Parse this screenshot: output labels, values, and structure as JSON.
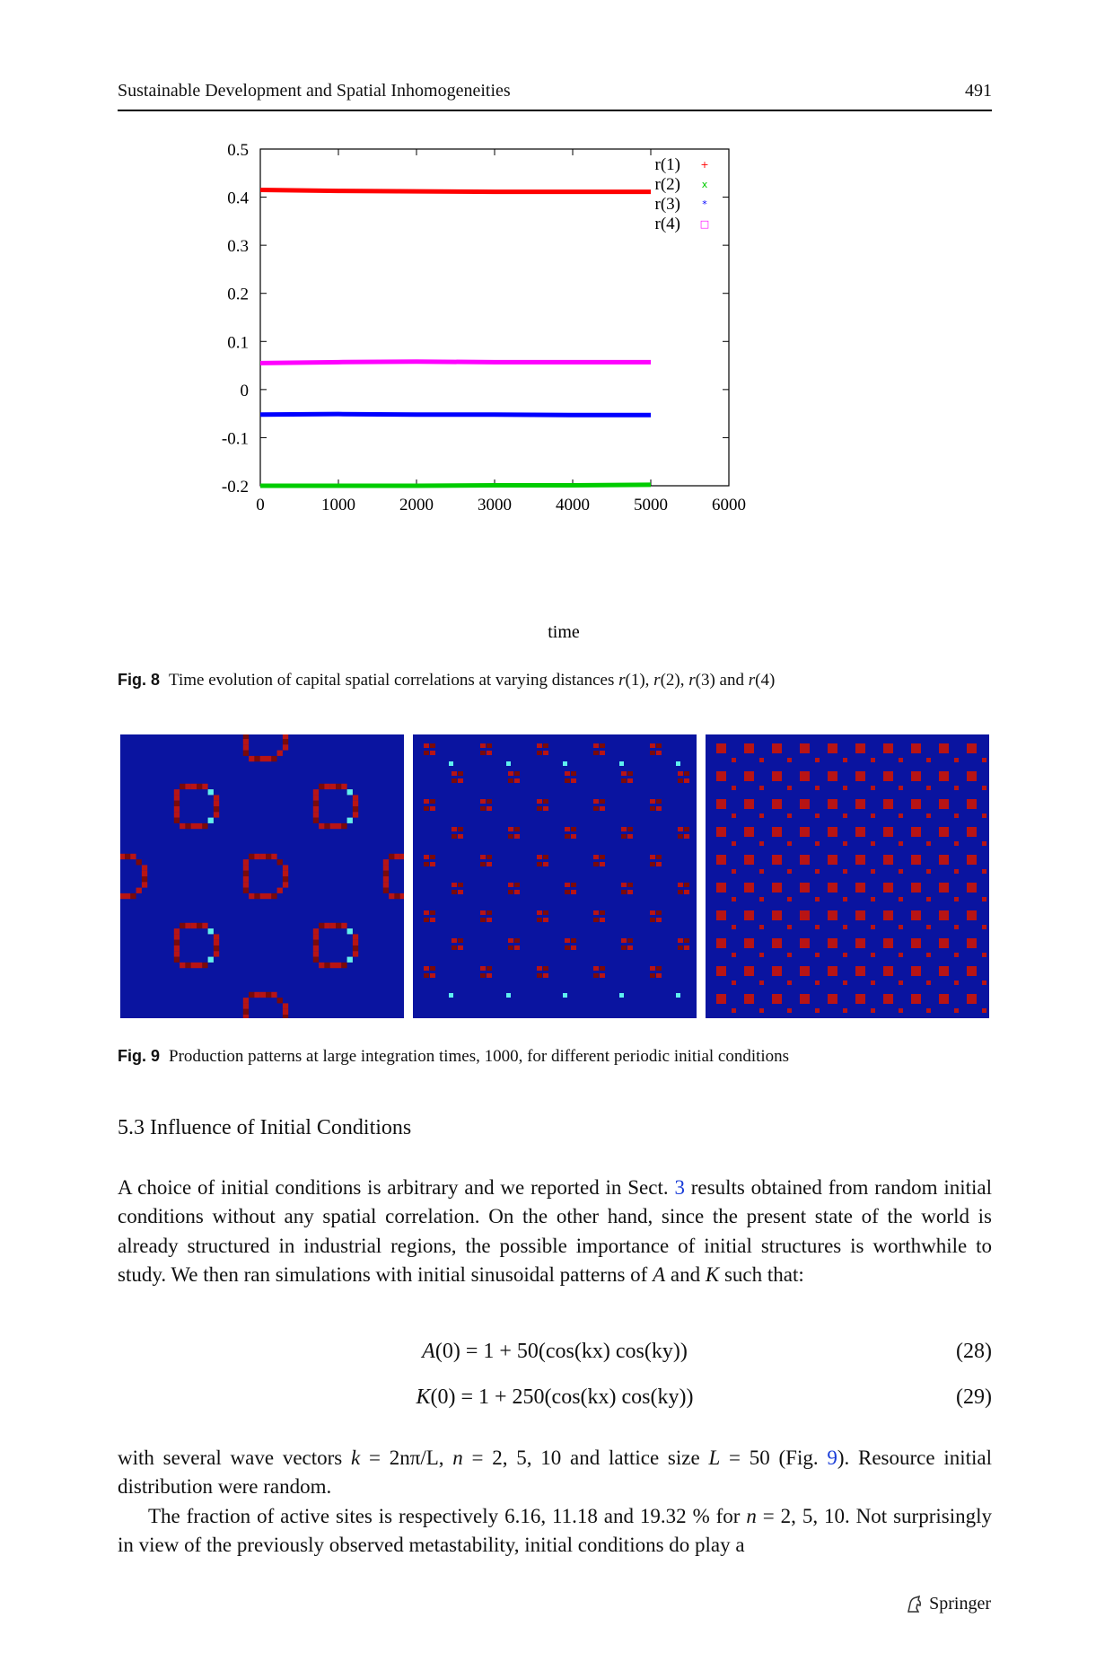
{
  "header": {
    "running_title": "Sustainable Development and Spatial Inhomogeneities",
    "page_number": "491"
  },
  "chart_data": {
    "type": "line",
    "xlabel": "time",
    "ylabel": "",
    "xlim": [
      0,
      6000
    ],
    "ylim": [
      -0.2,
      0.5
    ],
    "xticks": [
      "0",
      "1000",
      "2000",
      "3000",
      "4000",
      "5000",
      "6000"
    ],
    "yticks": [
      "0.5",
      "0.4",
      "0.3",
      "0.2",
      "0.1",
      "0",
      "-0.1",
      "-0.2"
    ],
    "legend_position": "top-right",
    "series": [
      {
        "name": "r(1)",
        "color": "#ff0000",
        "marker": "+",
        "x": [
          0,
          1000,
          2000,
          3000,
          4000,
          5000
        ],
        "values": [
          0.415,
          0.413,
          0.412,
          0.411,
          0.411,
          0.411
        ]
      },
      {
        "name": "r(2)",
        "color": "#00cc00",
        "marker": "x",
        "x": [
          0,
          1000,
          2000,
          3000,
          4000,
          5000
        ],
        "values": [
          -0.2,
          -0.2,
          -0.2,
          -0.199,
          -0.199,
          -0.198
        ]
      },
      {
        "name": "r(3)",
        "color": "#0000ff",
        "marker": "*",
        "x": [
          0,
          1000,
          2000,
          3000,
          4000,
          5000
        ],
        "values": [
          -0.052,
          -0.051,
          -0.052,
          -0.052,
          -0.053,
          -0.053
        ]
      },
      {
        "name": "r(4)",
        "color": "#ff00ff",
        "marker": "□",
        "x": [
          0,
          1000,
          2000,
          3000,
          4000,
          5000
        ],
        "values": [
          0.055,
          0.057,
          0.058,
          0.057,
          0.057,
          0.057
        ]
      }
    ]
  },
  "fig8": {
    "label": "Fig. 8",
    "text_before": "Time evolution of capital spatial correlations at varying distances ",
    "r1": "r",
    "a1": "(1), ",
    "r2": "r",
    "a2": "(2), ",
    "r3": "r",
    "a3": "(3) and ",
    "r4": "r",
    "a4": "(4)"
  },
  "fig9": {
    "label": "Fig. 9",
    "text": "Production patterns at large integration times, 1000, for different periodic initial conditions",
    "pattern_colors": {
      "background": "#0a14a0",
      "active": "#b81414",
      "dark": "#7a0a0a",
      "cyan": "#5ef0f0"
    }
  },
  "section": {
    "title": "5.3  Influence of Initial Conditions"
  },
  "para1": {
    "t1": "A choice of initial conditions is arbitrary and we reported in Sect. ",
    "ref": "3",
    "t2": " results obtained from random initial conditions without any spatial correlation. On the other hand, since the present state of the world is already structured in industrial regions, the possible importance of initial structures is worthwhile to study. We then ran simulations with initial sinusoidal patterns of ",
    "A": "A",
    "and": " and ",
    "K": "K",
    "t3": " such that:"
  },
  "eq28": {
    "lhs": "A",
    "rest": "(0) = 1 + 50(cos(kx) cos(ky))",
    "number": "(28)"
  },
  "eq29": {
    "lhs": "K",
    "rest": "(0) = 1 + 250(cos(kx) cos(ky))",
    "number": "(29)"
  },
  "para2": {
    "t1": "with several wave vectors ",
    "k": "k",
    "t2": " = 2nπ/L, ",
    "n": "n",
    "t3": " = 2, 5, 10 and lattice size ",
    "L": "L",
    "t4": " = 50 (Fig. ",
    "ref": "9",
    "t5": "). Resource initial distribution were random."
  },
  "para3": {
    "t1": "The fraction of active sites is respectively 6.16, 11.18 and 19.32 % for ",
    "n": "n",
    "t2": " = 2, 5, 10. Not surprisingly in view of the previously observed metastability, initial conditions do play a"
  },
  "footer": {
    "publisher": "Springer"
  }
}
